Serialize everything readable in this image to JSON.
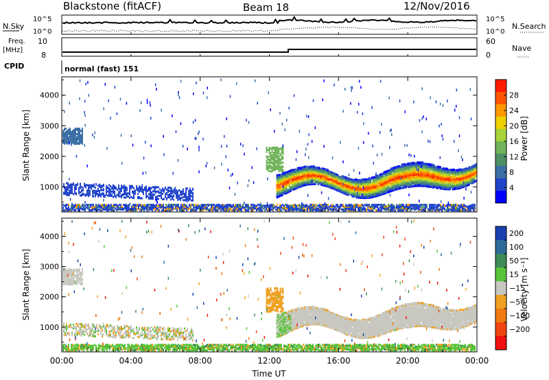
{
  "header": {
    "station": "Blackstone (fitACF)",
    "beam": "Beam 18",
    "date": "12/Nov/2016"
  },
  "chart_data": [
    {
      "type": "line",
      "name": "noise-panel",
      "left_label": "N.Sky",
      "right_label": "N.Search",
      "left_ticks": [
        "10^5",
        "10^0"
      ],
      "right_ticks": [
        "10^5",
        "10^0"
      ]
    },
    {
      "type": "line",
      "name": "frequency-panel",
      "left_label_line1": "Freq.",
      "left_label_line2": "[MHz]",
      "right_label": "Nave",
      "left_ticks": [
        "10",
        "8"
      ],
      "right_ticks": [
        "60",
        "0"
      ]
    },
    {
      "type": "table",
      "name": "cpid-panel",
      "label": "CPID",
      "mode_text": "normal (fast) 151"
    },
    {
      "type": "heatmap",
      "name": "power-panel",
      "ylabel": "Slant Range [km]",
      "yticks": [
        "1000",
        "2000",
        "3000",
        "4000"
      ],
      "ytick_values": [
        1000,
        2000,
        3000,
        4000
      ],
      "ylim": [
        180,
        4600
      ],
      "xlim_hours": [
        0,
        24
      ],
      "colorbar": {
        "label": "Power [dB]",
        "ticks": [
          "4",
          "8",
          "12",
          "16",
          "20",
          "24",
          "28"
        ],
        "range": [
          0,
          32
        ]
      }
    },
    {
      "type": "heatmap",
      "name": "velocity-panel",
      "ylabel": "Slant Range [km]",
      "yticks": [
        "1000",
        "2000",
        "3000",
        "4000"
      ],
      "ytick_values": [
        1000,
        2000,
        3000,
        4000
      ],
      "ylim": [
        180,
        4600
      ],
      "xlim_hours": [
        0,
        24
      ],
      "colorbar": {
        "label": "Velocity [m s⁻¹]",
        "ticks": [
          "200",
          "100",
          "50",
          "15",
          "−15",
          "−50",
          "−100",
          "−200"
        ]
      }
    }
  ],
  "xaxis": {
    "label": "Time UT",
    "ticks": [
      "00:00",
      "04:00",
      "08:00",
      "12:00",
      "16:00",
      "20:00",
      "00:00"
    ],
    "tick_hours": [
      0,
      4,
      8,
      12,
      16,
      20,
      24
    ]
  },
  "colors": {
    "power": [
      "#0000ff",
      "#2244cc",
      "#3a6ea5",
      "#4f8f66",
      "#71b35a",
      "#a8d43a",
      "#f0d000",
      "#ff9900",
      "#ff5500",
      "#ff1a00"
    ],
    "velocity": [
      "#1a3fb0",
      "#2d6a9a",
      "#3e8a58",
      "#59c43a",
      "#c8c8c0",
      "#f0a020",
      "#f07a10",
      "#f04510",
      "#f01010"
    ],
    "velocity_scatter": "#c8c8c0"
  }
}
